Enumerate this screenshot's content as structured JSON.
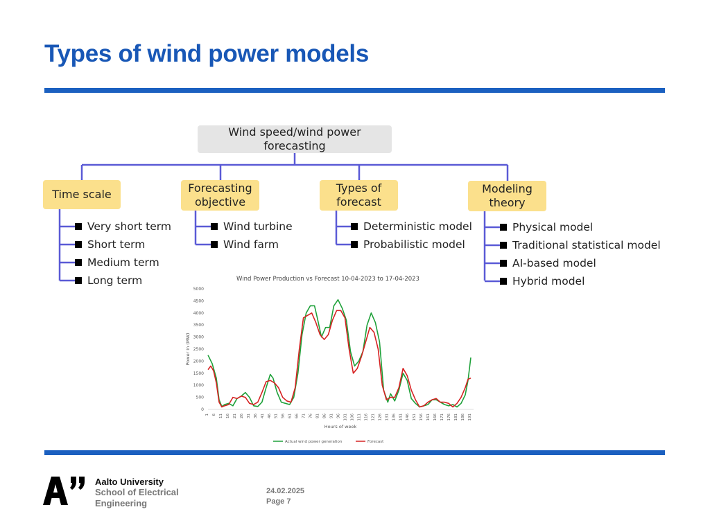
{
  "slide": {
    "title": "Types of wind power models",
    "footer": {
      "university": "Aalto University",
      "school": "School of Electrical Engineering",
      "date": "24.02.2025",
      "page": "Page 7"
    }
  },
  "diagram": {
    "root": "Wind speed/wind power forecasting",
    "categories": [
      {
        "label": "Time scale",
        "items": [
          "Very short term",
          "Short term",
          "Medium term",
          "Long term"
        ]
      },
      {
        "label": "Forecasting objective",
        "items": [
          "Wind turbine",
          "Wind farm"
        ]
      },
      {
        "label": "Types of forecast",
        "items": [
          "Deterministic model",
          "Probabilistic model"
        ]
      },
      {
        "label": "Modeling theory",
        "items": [
          "Physical model",
          "Traditional statistical model",
          "AI-based model",
          "Hybrid model"
        ]
      }
    ],
    "colors": {
      "root_box": "#e5e5e5",
      "category_box": "#fbe08c",
      "connector": "#5a5ad6",
      "bullet": "#000000"
    }
  },
  "chart_data": {
    "type": "line",
    "title": "Wind Power Production vs Forecast 10-04-2023 to 17-04-2023",
    "xlabel": "Hours of week",
    "ylabel": "Power in (MW)",
    "ylim": [
      0,
      5000
    ],
    "yticks": [
      0,
      500,
      1000,
      1500,
      2000,
      2500,
      3000,
      3500,
      4000,
      4500,
      5000
    ],
    "xticks": [
      1,
      6,
      11,
      16,
      21,
      26,
      31,
      36,
      41,
      46,
      51,
      56,
      61,
      66,
      71,
      76,
      81,
      86,
      91,
      96,
      101,
      106,
      111,
      116,
      121,
      126,
      131,
      136,
      141,
      146,
      151,
      156,
      161,
      166,
      171,
      176,
      181,
      186,
      191
    ],
    "grid": false,
    "legend": "bottom",
    "series": [
      {
        "name": "Actual wind power generation",
        "color": "#1fa13a",
        "x": [
          1,
          4,
          7,
          9,
          11,
          13,
          16,
          19,
          22,
          25,
          28,
          31,
          34,
          37,
          40,
          43,
          46,
          48,
          51,
          54,
          57,
          60,
          63,
          66,
          69,
          72,
          75,
          78,
          80,
          83,
          86,
          89,
          92,
          95,
          98,
          101,
          104,
          107,
          110,
          113,
          116,
          119,
          122,
          125,
          128,
          131,
          133,
          136,
          139,
          142,
          145,
          148,
          151,
          154,
          157,
          160,
          163,
          166,
          169,
          172,
          175,
          178,
          181,
          184,
          187,
          189,
          191
        ],
        "y": [
          2250,
          1900,
          1300,
          400,
          120,
          200,
          250,
          150,
          450,
          550,
          700,
          500,
          150,
          120,
          300,
          900,
          1450,
          1300,
          700,
          300,
          250,
          200,
          500,
          1500,
          3100,
          4000,
          4300,
          4300,
          3800,
          3000,
          3400,
          3400,
          4300,
          4550,
          4200,
          3700,
          2400,
          1800,
          2000,
          2400,
          3500,
          4000,
          3600,
          2800,
          800,
          300,
          650,
          350,
          800,
          1500,
          1200,
          450,
          250,
          100,
          150,
          200,
          400,
          400,
          300,
          200,
          150,
          200,
          100,
          250,
          600,
          1200,
          2150
        ]
      },
      {
        "name": "Forecast",
        "color": "#d62222",
        "x": [
          1,
          3,
          5,
          7,
          9,
          11,
          13,
          16,
          19,
          22,
          25,
          28,
          31,
          34,
          37,
          40,
          43,
          46,
          49,
          52,
          55,
          58,
          61,
          64,
          67,
          70,
          73,
          76,
          79,
          82,
          85,
          88,
          91,
          94,
          97,
          100,
          103,
          106,
          109,
          112,
          115,
          118,
          121,
          124,
          127,
          130,
          133,
          136,
          139,
          142,
          145,
          148,
          151,
          154,
          157,
          160,
          163,
          166,
          169,
          172,
          175,
          178,
          181,
          184,
          187,
          189,
          191
        ],
        "y": [
          1650,
          1800,
          1600,
          1100,
          300,
          100,
          150,
          200,
          500,
          450,
          550,
          500,
          250,
          200,
          300,
          700,
          1150,
          1200,
          1100,
          900,
          500,
          350,
          300,
          900,
          2500,
          3800,
          3900,
          4000,
          3600,
          3100,
          2900,
          3100,
          3700,
          4100,
          4100,
          3800,
          2500,
          1500,
          1700,
          2200,
          2800,
          3400,
          3200,
          2500,
          1000,
          400,
          500,
          500,
          900,
          1700,
          1400,
          800,
          400,
          100,
          150,
          300,
          400,
          450,
          300,
          300,
          250,
          100,
          250,
          500,
          900,
          1250,
          1300
        ]
      }
    ]
  }
}
